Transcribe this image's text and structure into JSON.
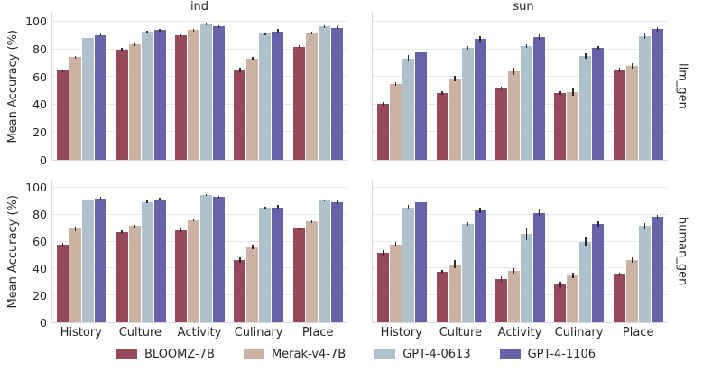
{
  "chart_data": {
    "type": "bar",
    "ylabel": "Mean Accuracy (%)",
    "ylim": [
      0,
      100
    ],
    "yticks": [
      0,
      20,
      40,
      60,
      80,
      100
    ],
    "grid": "horizontal",
    "legend_position": "bottom",
    "categories": [
      "History",
      "Culture",
      "Activity",
      "Culinary",
      "Place"
    ],
    "col_titles": [
      "ind",
      "sun"
    ],
    "row_labels": [
      "llm_gen",
      "human_gen"
    ],
    "error_bar_color": "#2b2b2b",
    "models": [
      {
        "name": "BLOOMZ-7B",
        "color": "#96495a"
      },
      {
        "name": "Merak-v4-7B",
        "color": "#cbb2a2"
      },
      {
        "name": "GPT-4-0613",
        "color": "#aec2ce"
      },
      {
        "name": "GPT-4-1106",
        "color": "#6862a8"
      }
    ],
    "panels": [
      {
        "col": "ind",
        "row": "llm_gen",
        "series": [
          {
            "name": "BLOOMZ-7B",
            "values": [
              64.5,
              80,
              90,
              65,
              82
            ],
            "errors": [
              1,
              1,
              1,
              1.5,
              1
            ]
          },
          {
            "name": "Merak-v4-7B",
            "values": [
              74.5,
              83.5,
              94,
              73.5,
              92
            ],
            "errors": [
              1,
              1,
              1,
              1,
              1
            ]
          },
          {
            "name": "GPT-4-0613",
            "values": [
              88.5,
              92.5,
              98,
              91.5,
              96.5
            ],
            "errors": [
              1,
              1,
              0.8,
              1,
              0.8
            ]
          },
          {
            "name": "GPT-4-1106",
            "values": [
              90.5,
              94,
              96.5,
              93,
              95.5
            ],
            "errors": [
              1,
              1,
              1,
              1.5,
              1
            ]
          }
        ]
      },
      {
        "col": "sun",
        "row": "llm_gen",
        "series": [
          {
            "name": "BLOOMZ-7B",
            "values": [
              40.5,
              48.5,
              51.5,
              48.5,
              65
            ],
            "errors": [
              1.5,
              1.5,
              1.5,
              1.5,
              1.5
            ]
          },
          {
            "name": "Merak-v4-7B",
            "values": [
              55,
              59,
              64,
              49,
              68
            ],
            "errors": [
              1.5,
              2,
              2.5,
              2.5,
              2
            ]
          },
          {
            "name": "GPT-4-0613",
            "values": [
              73.5,
              81,
              82.5,
              75,
              89.5
            ],
            "errors": [
              2.5,
              1.5,
              1.5,
              2,
              2
            ]
          },
          {
            "name": "GPT-4-1106",
            "values": [
              78,
              87.5,
              89,
              81,
              94.5
            ],
            "errors": [
              4.5,
              2,
              2,
              1.5,
              1.5
            ]
          }
        ]
      },
      {
        "col": "ind",
        "row": "human_gen",
        "series": [
          {
            "name": "BLOOMZ-7B",
            "values": [
              57.5,
              67,
              68.5,
              46.5,
              69.5
            ],
            "errors": [
              1.5,
              1.5,
              1.5,
              2,
              1
            ]
          },
          {
            "name": "Merak-v4-7B",
            "values": [
              69.5,
              71.5,
              76,
              56,
              75
            ],
            "errors": [
              1.5,
              1,
              1,
              1.5,
              1
            ]
          },
          {
            "name": "GPT-4-0613",
            "values": [
              91,
              89.5,
              94.5,
              85,
              90.5
            ],
            "errors": [
              1,
              1,
              0.8,
              1,
              0.8
            ]
          },
          {
            "name": "GPT-4-1106",
            "values": [
              92,
              91.5,
              93,
              85.5,
              89.5
            ],
            "errors": [
              1,
              1,
              1,
              1.5,
              1.5
            ]
          }
        ]
      },
      {
        "col": "sun",
        "row": "human_gen",
        "series": [
          {
            "name": "BLOOMZ-7B",
            "values": [
              51.5,
              37.5,
              32,
              28.5,
              35.5
            ],
            "errors": [
              2.5,
              1.5,
              2.5,
              2,
              1.5
            ]
          },
          {
            "name": "Merak-v4-7B",
            "values": [
              58,
              43,
              38,
              35,
              46.5
            ],
            "errors": [
              1.5,
              3,
              2.5,
              2,
              2
            ]
          },
          {
            "name": "GPT-4-0613",
            "values": [
              85.5,
              73,
              65.5,
              60,
              71.5
            ],
            "errors": [
              1.5,
              1.5,
              4.5,
              3,
              2.5
            ]
          },
          {
            "name": "GPT-4-1106",
            "values": [
              89,
              83.5,
              81.5,
              73,
              78.5
            ],
            "errors": [
              1.5,
              2,
              2.5,
              2,
              1.5
            ]
          }
        ]
      }
    ]
  }
}
